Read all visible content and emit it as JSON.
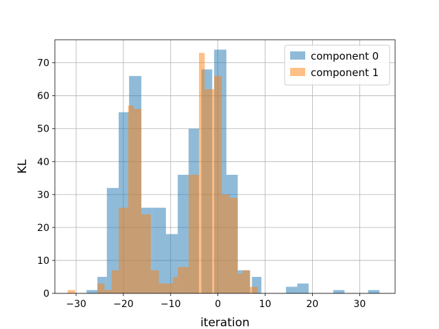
{
  "chart_data": {
    "type": "bar",
    "xlabel": "iteration",
    "ylabel": "KL",
    "xlim": [
      -34.5,
      37.5
    ],
    "ylim": [
      0,
      77
    ],
    "xticks": [
      -30,
      -20,
      -10,
      0,
      10,
      20,
      30
    ],
    "yticks": [
      0,
      10,
      20,
      30,
      40,
      50,
      60,
      70
    ],
    "xtick_labels": [
      "−30",
      "−20",
      "−10",
      "0",
      "10",
      "20",
      "30"
    ],
    "ytick_labels": [
      "0",
      "10",
      "20",
      "30",
      "40",
      "50",
      "60",
      "70"
    ],
    "grid": true,
    "legend_position": "upper-right",
    "series": [
      {
        "name": "component 0",
        "color": "#1f77b4",
        "alpha": 0.5,
        "bins": [
          {
            "x0": -27.8,
            "x1": -25.5,
            "count": 1
          },
          {
            "x0": -25.5,
            "x1": -23.5,
            "count": 5
          },
          {
            "x0": -23.5,
            "x1": -21.0,
            "count": 32
          },
          {
            "x0": -21.0,
            "x1": -18.8,
            "count": 55
          },
          {
            "x0": -18.8,
            "x1": -16.2,
            "count": 66
          },
          {
            "x0": -16.2,
            "x1": -14.0,
            "count": 26
          },
          {
            "x0": -14.0,
            "x1": -11.0,
            "count": 26
          },
          {
            "x0": -11.0,
            "x1": -8.5,
            "count": 18
          },
          {
            "x0": -8.5,
            "x1": -6.2,
            "count": 36
          },
          {
            "x0": -6.2,
            "x1": -4.0,
            "count": 50
          },
          {
            "x0": -3.5,
            "x1": -1.2,
            "count": 68
          },
          {
            "x0": -0.8,
            "x1": 1.8,
            "count": 74
          },
          {
            "x0": 1.8,
            "x1": 4.2,
            "count": 36
          },
          {
            "x0": 4.2,
            "x1": 6.8,
            "count": 7
          },
          {
            "x0": 7.2,
            "x1": 9.2,
            "count": 5
          },
          {
            "x0": 14.4,
            "x1": 16.8,
            "count": 2
          },
          {
            "x0": 16.8,
            "x1": 19.2,
            "count": 3
          },
          {
            "x0": 24.4,
            "x1": 26.8,
            "count": 1
          },
          {
            "x0": 31.8,
            "x1": 34.2,
            "count": 1
          }
        ]
      },
      {
        "name": "component 1",
        "color": "#ff7f0e",
        "alpha": 0.5,
        "bins": [
          {
            "x0": -31.8,
            "x1": -30.2,
            "count": 1
          },
          {
            "x0": -25.5,
            "x1": -24.0,
            "count": 3
          },
          {
            "x0": -24.0,
            "x1": -22.5,
            "count": 1
          },
          {
            "x0": -22.5,
            "x1": -21.0,
            "count": 7
          },
          {
            "x0": -21.0,
            "x1": -19.0,
            "count": 26
          },
          {
            "x0": -19.0,
            "x1": -17.8,
            "count": 57
          },
          {
            "x0": -17.8,
            "x1": -16.2,
            "count": 56
          },
          {
            "x0": -16.2,
            "x1": -14.2,
            "count": 24
          },
          {
            "x0": -14.2,
            "x1": -12.5,
            "count": 7
          },
          {
            "x0": -12.5,
            "x1": -9.5,
            "count": 3
          },
          {
            "x0": -9.5,
            "x1": -8.5,
            "count": 5
          },
          {
            "x0": -8.5,
            "x1": -6.2,
            "count": 8
          },
          {
            "x0": -6.2,
            "x1": -4.0,
            "count": 36
          },
          {
            "x0": -4.0,
            "x1": -2.8,
            "count": 73
          },
          {
            "x0": -2.8,
            "x1": -0.8,
            "count": 62
          },
          {
            "x0": -0.8,
            "x1": 0.8,
            "count": 66
          },
          {
            "x0": 0.8,
            "x1": 2.5,
            "count": 30
          },
          {
            "x0": 2.5,
            "x1": 4.2,
            "count": 29
          },
          {
            "x0": 4.2,
            "x1": 5.2,
            "count": 6
          },
          {
            "x0": 5.2,
            "x1": 6.8,
            "count": 7
          },
          {
            "x0": 6.8,
            "x1": 8.5,
            "count": 2
          }
        ]
      }
    ]
  }
}
